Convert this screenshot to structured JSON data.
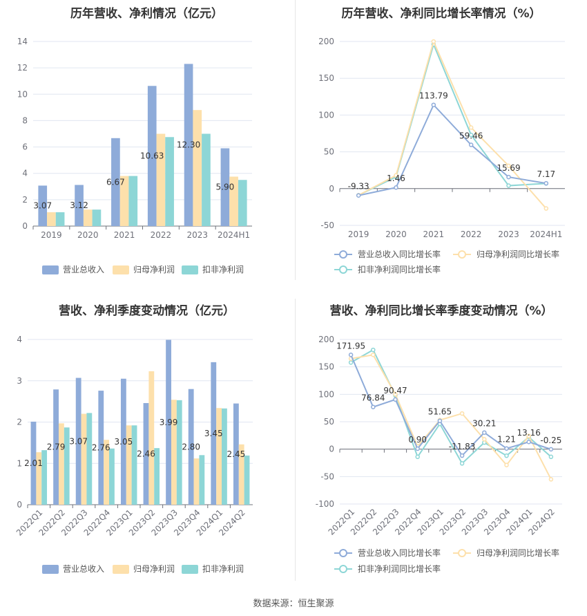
{
  "footer": {
    "source": "数据来源：恒生聚源"
  },
  "colors": {
    "revenue": "#8eabd9",
    "net_profit": "#fde0ab",
    "deducted_profit": "#8dd6d6",
    "grid": "#e0e6f1",
    "axis": "#6e7079"
  },
  "chart_data": [
    {
      "type": "bar",
      "title": "历年营收、净利情况（亿元）",
      "categories": [
        "2019",
        "2020",
        "2021",
        "2022",
        "2023",
        "2024H1"
      ],
      "ylim": [
        0,
        14
      ],
      "yticks": [
        0,
        2,
        4,
        6,
        8,
        10,
        12,
        14
      ],
      "grid": true,
      "legend_position": "bottom",
      "series": [
        {
          "name": "营业总收入",
          "color": "#8eabd9",
          "values": [
            3.07,
            3.12,
            6.67,
            10.63,
            12.3,
            5.9
          ],
          "labels": [
            "3.07",
            "3.12",
            "6.67",
            "10.63",
            "12.30",
            "5.90"
          ]
        },
        {
          "name": "归母净利润",
          "color": "#fde0ab",
          "values": [
            1.05,
            1.25,
            3.8,
            7.0,
            8.8,
            3.75
          ]
        },
        {
          "name": "扣非净利润",
          "color": "#8dd6d6",
          "values": [
            1.05,
            1.25,
            3.8,
            6.75,
            7.0,
            3.5
          ]
        }
      ]
    },
    {
      "type": "line",
      "title": "历年营收、净利同比增长率情况（%）",
      "categories": [
        "2019",
        "2020",
        "2021",
        "2022",
        "2023",
        "2024H1"
      ],
      "ylim": [
        -50,
        200
      ],
      "yticks": [
        -50,
        0,
        50,
        100,
        150,
        200
      ],
      "grid": true,
      "legend_position": "bottom",
      "series": [
        {
          "name": "营业总收入同比增长率",
          "color": "#8eabd9",
          "values": [
            -9.33,
            1.46,
            113.79,
            59.46,
            15.69,
            7.17
          ],
          "labels": [
            "-9.33",
            "1.46",
            "113.79",
            "59.46",
            "15.69",
            "7.17"
          ]
        },
        {
          "name": "归母净利润同比增长率",
          "color": "#fde0ab",
          "values": [
            -9,
            18,
            200,
            83,
            31,
            -27
          ]
        },
        {
          "name": "扣非净利润同比增长率",
          "color": "#8dd6d6",
          "values": [
            -9,
            16,
            196,
            73,
            4,
            7
          ]
        }
      ]
    },
    {
      "type": "bar",
      "title": "营收、净利季度变动情况（亿元）",
      "categories": [
        "2022Q1",
        "2022Q2",
        "2022Q3",
        "2022Q4",
        "2023Q1",
        "2023Q2",
        "2023Q3",
        "2023Q4",
        "2024Q1",
        "2024Q2"
      ],
      "ylim": [
        0,
        4
      ],
      "yticks": [
        0,
        1,
        2,
        3,
        4
      ],
      "grid": true,
      "legend_position": "bottom",
      "series": [
        {
          "name": "营业总收入",
          "color": "#8eabd9",
          "values": [
            2.01,
            2.79,
            3.07,
            2.76,
            3.05,
            2.46,
            3.99,
            2.8,
            3.45,
            2.45
          ],
          "labels": [
            "2.01",
            "2.79",
            "3.07",
            "2.76",
            "3.05",
            "2.46",
            "3.99",
            "2.80",
            "3.45",
            "2.45"
          ]
        },
        {
          "name": "归母净利润",
          "color": "#fde0ab",
          "values": [
            1.27,
            1.97,
            2.2,
            1.57,
            1.92,
            3.23,
            2.54,
            1.12,
            2.34,
            1.46
          ]
        },
        {
          "name": "扣非净利润",
          "color": "#8dd6d6",
          "values": [
            1.32,
            1.87,
            2.22,
            1.36,
            1.92,
            1.37,
            2.53,
            1.2,
            2.33,
            1.19
          ]
        }
      ]
    },
    {
      "type": "line",
      "title": "营收、净利同比增长率季度变动情况（%）",
      "categories": [
        "2022Q1",
        "2022Q2",
        "2022Q3",
        "2022Q4",
        "2023Q1",
        "2023Q2",
        "2023Q3",
        "2023Q4",
        "2024Q1",
        "2024Q2"
      ],
      "ylim": [
        -100,
        200
      ],
      "yticks": [
        -100,
        -50,
        0,
        50,
        100,
        150,
        200
      ],
      "grid": true,
      "legend_position": "bottom",
      "series": [
        {
          "name": "营业总收入同比增长率",
          "color": "#8eabd9",
          "values": [
            171.95,
            76.84,
            90.47,
            0.9,
            51.65,
            -11.83,
            30.21,
            1.21,
            13.16,
            -0.25
          ],
          "labels": [
            "171.95",
            "76.84",
            "90.47",
            "0.90",
            "51.65",
            "-11.83",
            "30.21",
            "1.21",
            "13.16",
            "-0.25"
          ]
        },
        {
          "name": "归母净利润同比增长率",
          "color": "#fde0ab",
          "values": [
            165,
            172,
            100,
            5,
            53,
            65,
            18,
            -29,
            24,
            -55
          ]
        },
        {
          "name": "扣非净利润同比增长率",
          "color": "#8dd6d6",
          "values": [
            158,
            181,
            98,
            -14,
            46,
            -26,
            12,
            -12,
            22,
            -14
          ]
        }
      ]
    }
  ]
}
